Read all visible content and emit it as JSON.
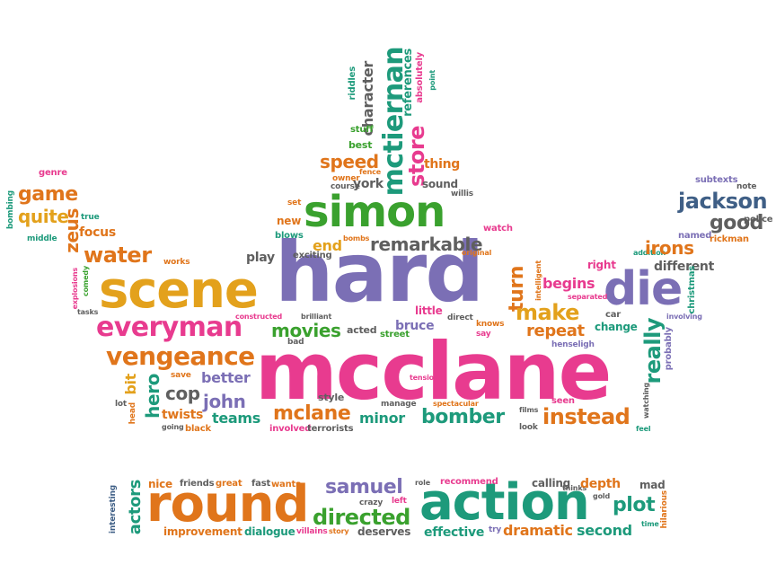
{
  "colors": {
    "green": "#3aa12e",
    "orange": "#e0751b",
    "purple": "#7b6fb5",
    "pink": "#e83b8f",
    "teal": "#1d9a7b",
    "yellow": "#e3a11c",
    "gray": "#5f5f5f",
    "slate": "#3f5f86"
  },
  "words": [
    {
      "text": "hard",
      "size": 92,
      "color": "purple"
    },
    {
      "text": "mcclane",
      "size": 88,
      "color": "pink"
    },
    {
      "text": "scene",
      "size": 56,
      "color": "yellow"
    },
    {
      "text": "round",
      "size": 56,
      "color": "orange"
    },
    {
      "text": "action",
      "size": 56,
      "color": "teal"
    },
    {
      "text": "simon",
      "size": 48,
      "color": "green"
    },
    {
      "text": "die",
      "size": 52,
      "color": "purple"
    },
    {
      "text": "everyman",
      "size": 30,
      "color": "pink"
    },
    {
      "text": "vengeance",
      "size": 28,
      "color": "orange"
    },
    {
      "text": "mctiernan",
      "size": 30,
      "color": "teal"
    },
    {
      "text": "jackson",
      "size": 24,
      "color": "slate"
    },
    {
      "text": "remarkable",
      "size": 20,
      "color": "gray"
    },
    {
      "text": "water",
      "size": 24,
      "color": "orange"
    },
    {
      "text": "game",
      "size": 22,
      "color": "orange"
    },
    {
      "text": "quite",
      "size": 20,
      "color": "yellow"
    },
    {
      "text": "zeus",
      "size": 20,
      "color": "orange"
    },
    {
      "text": "focus",
      "size": 14,
      "color": "orange"
    },
    {
      "text": "genre",
      "size": 10,
      "color": "pink"
    },
    {
      "text": "bombing",
      "size": 9,
      "color": "teal"
    },
    {
      "text": "true",
      "size": 9,
      "color": "teal"
    },
    {
      "text": "middle",
      "size": 9,
      "color": "teal"
    },
    {
      "text": "explosions",
      "size": 8,
      "color": "pink"
    },
    {
      "text": "comedy",
      "size": 8,
      "color": "green"
    },
    {
      "text": "works",
      "size": 9,
      "color": "orange"
    },
    {
      "text": "tasks",
      "size": 8,
      "color": "gray"
    },
    {
      "text": "play",
      "size": 14,
      "color": "gray"
    },
    {
      "text": "speed",
      "size": 20,
      "color": "orange"
    },
    {
      "text": "store",
      "size": 24,
      "color": "pink"
    },
    {
      "text": "character",
      "size": 16,
      "color": "gray"
    },
    {
      "text": "references",
      "size": 13,
      "color": "teal"
    },
    {
      "text": "absolutely",
      "size": 10,
      "color": "pink"
    },
    {
      "text": "riddles",
      "size": 10,
      "color": "teal"
    },
    {
      "text": "point",
      "size": 8,
      "color": "teal"
    },
    {
      "text": "stuff",
      "size": 10,
      "color": "green"
    },
    {
      "text": "best",
      "size": 11,
      "color": "green"
    },
    {
      "text": "thing",
      "size": 14,
      "color": "orange"
    },
    {
      "text": "owner",
      "size": 9,
      "color": "orange"
    },
    {
      "text": "fence",
      "size": 8,
      "color": "orange"
    },
    {
      "text": "course",
      "size": 9,
      "color": "gray"
    },
    {
      "text": "york",
      "size": 14,
      "color": "gray"
    },
    {
      "text": "sound",
      "size": 12,
      "color": "gray"
    },
    {
      "text": "willis",
      "size": 9,
      "color": "gray"
    },
    {
      "text": "set",
      "size": 9,
      "color": "orange"
    },
    {
      "text": "new",
      "size": 12,
      "color": "orange"
    },
    {
      "text": "blows",
      "size": 10,
      "color": "teal"
    },
    {
      "text": "exciting",
      "size": 10,
      "color": "gray"
    },
    {
      "text": "bombs",
      "size": 8,
      "color": "orange"
    },
    {
      "text": "end",
      "size": 16,
      "color": "yellow"
    },
    {
      "text": "watch",
      "size": 10,
      "color": "pink"
    },
    {
      "text": "original",
      "size": 8,
      "color": "orange"
    },
    {
      "text": "turn",
      "size": 22,
      "color": "orange"
    },
    {
      "text": "intelligent",
      "size": 8,
      "color": "orange"
    },
    {
      "text": "separated",
      "size": 8,
      "color": "pink"
    },
    {
      "text": "begins",
      "size": 16,
      "color": "pink"
    },
    {
      "text": "right",
      "size": 12,
      "color": "pink"
    },
    {
      "text": "addition",
      "size": 8,
      "color": "teal"
    },
    {
      "text": "irons",
      "size": 20,
      "color": "orange"
    },
    {
      "text": "named",
      "size": 10,
      "color": "purple"
    },
    {
      "text": "different",
      "size": 14,
      "color": "gray"
    },
    {
      "text": "good",
      "size": 22,
      "color": "gray"
    },
    {
      "text": "police",
      "size": 10,
      "color": "gray"
    },
    {
      "text": "rickman",
      "size": 10,
      "color": "orange"
    },
    {
      "text": "subtexts",
      "size": 10,
      "color": "purple"
    },
    {
      "text": "note",
      "size": 9,
      "color": "gray"
    },
    {
      "text": "christmas",
      "size": 10,
      "color": "teal"
    },
    {
      "text": "involving",
      "size": 8,
      "color": "purple"
    },
    {
      "text": "make",
      "size": 24,
      "color": "yellow"
    },
    {
      "text": "car",
      "size": 10,
      "color": "gray"
    },
    {
      "text": "change",
      "size": 12,
      "color": "teal"
    },
    {
      "text": "really",
      "size": 24,
      "color": "teal"
    },
    {
      "text": "probably",
      "size": 10,
      "color": "purple"
    },
    {
      "text": "little",
      "size": 12,
      "color": "pink"
    },
    {
      "text": "direct",
      "size": 9,
      "color": "gray"
    },
    {
      "text": "knows",
      "size": 9,
      "color": "orange"
    },
    {
      "text": "say",
      "size": 9,
      "color": "pink"
    },
    {
      "text": "repeat",
      "size": 18,
      "color": "orange"
    },
    {
      "text": "henseligh",
      "size": 9,
      "color": "purple"
    },
    {
      "text": "bruce",
      "size": 14,
      "color": "purple"
    },
    {
      "text": "street",
      "size": 10,
      "color": "green"
    },
    {
      "text": "acted",
      "size": 11,
      "color": "gray"
    },
    {
      "text": "movies",
      "size": 20,
      "color": "green"
    },
    {
      "text": "bad",
      "size": 9,
      "color": "gray"
    },
    {
      "text": "brilliant",
      "size": 8,
      "color": "gray"
    },
    {
      "text": "constructed",
      "size": 8,
      "color": "pink"
    },
    {
      "text": "better",
      "size": 16,
      "color": "purple"
    },
    {
      "text": "save",
      "size": 9,
      "color": "orange"
    },
    {
      "text": "cop",
      "size": 20,
      "color": "gray"
    },
    {
      "text": "john",
      "size": 20,
      "color": "purple"
    },
    {
      "text": "hero",
      "size": 20,
      "color": "teal"
    },
    {
      "text": "bit",
      "size": 16,
      "color": "yellow"
    },
    {
      "text": "lot",
      "size": 9,
      "color": "gray"
    },
    {
      "text": "head",
      "size": 9,
      "color": "orange"
    },
    {
      "text": "twists",
      "size": 14,
      "color": "orange"
    },
    {
      "text": "teams",
      "size": 16,
      "color": "teal"
    },
    {
      "text": "going",
      "size": 8,
      "color": "gray"
    },
    {
      "text": "black",
      "size": 10,
      "color": "orange"
    },
    {
      "text": "style",
      "size": 11,
      "color": "gray"
    },
    {
      "text": "mclane",
      "size": 22,
      "color": "orange"
    },
    {
      "text": "involved",
      "size": 10,
      "color": "pink"
    },
    {
      "text": "terrorists",
      "size": 10,
      "color": "gray"
    },
    {
      "text": "manage",
      "size": 9,
      "color": "gray"
    },
    {
      "text": "tension",
      "size": 8,
      "color": "pink"
    },
    {
      "text": "minor",
      "size": 16,
      "color": "teal"
    },
    {
      "text": "spectacular",
      "size": 8,
      "color": "orange"
    },
    {
      "text": "bomber",
      "size": 22,
      "color": "teal"
    },
    {
      "text": "films",
      "size": 8,
      "color": "gray"
    },
    {
      "text": "look",
      "size": 9,
      "color": "gray"
    },
    {
      "text": "seen",
      "size": 10,
      "color": "pink"
    },
    {
      "text": "watching",
      "size": 8,
      "color": "gray"
    },
    {
      "text": "instead",
      "size": 24,
      "color": "orange"
    },
    {
      "text": "feel",
      "size": 8,
      "color": "teal"
    },
    {
      "text": "actors",
      "size": 18,
      "color": "teal"
    },
    {
      "text": "interesting",
      "size": 9,
      "color": "slate"
    },
    {
      "text": "nice",
      "size": 12,
      "color": "orange"
    },
    {
      "text": "friends",
      "size": 10,
      "color": "gray"
    },
    {
      "text": "great",
      "size": 10,
      "color": "orange"
    },
    {
      "text": "fast",
      "size": 10,
      "color": "gray"
    },
    {
      "text": "wants",
      "size": 10,
      "color": "orange"
    },
    {
      "text": "samuel",
      "size": 22,
      "color": "purple"
    },
    {
      "text": "crazy",
      "size": 9,
      "color": "gray"
    },
    {
      "text": "left",
      "size": 9,
      "color": "pink"
    },
    {
      "text": "role",
      "size": 8,
      "color": "gray"
    },
    {
      "text": "recommend",
      "size": 10,
      "color": "pink"
    },
    {
      "text": "calling",
      "size": 12,
      "color": "gray"
    },
    {
      "text": "thinks",
      "size": 8,
      "color": "gray"
    },
    {
      "text": "depth",
      "size": 14,
      "color": "orange"
    },
    {
      "text": "gold",
      "size": 8,
      "color": "gray"
    },
    {
      "text": "mad",
      "size": 12,
      "color": "gray"
    },
    {
      "text": "plot",
      "size": 22,
      "color": "teal"
    },
    {
      "text": "hilarious",
      "size": 9,
      "color": "orange"
    },
    {
      "text": "time",
      "size": 8,
      "color": "teal"
    },
    {
      "text": "directed",
      "size": 24,
      "color": "green"
    },
    {
      "text": "improvement",
      "size": 12,
      "color": "orange"
    },
    {
      "text": "dialogue",
      "size": 12,
      "color": "teal"
    },
    {
      "text": "villains",
      "size": 9,
      "color": "pink"
    },
    {
      "text": "story",
      "size": 8,
      "color": "orange"
    },
    {
      "text": "deserves",
      "size": 12,
      "color": "gray"
    },
    {
      "text": "effective",
      "size": 14,
      "color": "teal"
    },
    {
      "text": "try",
      "size": 9,
      "color": "purple"
    },
    {
      "text": "dramatic",
      "size": 16,
      "color": "orange"
    },
    {
      "text": "second",
      "size": 16,
      "color": "teal"
    }
  ]
}
